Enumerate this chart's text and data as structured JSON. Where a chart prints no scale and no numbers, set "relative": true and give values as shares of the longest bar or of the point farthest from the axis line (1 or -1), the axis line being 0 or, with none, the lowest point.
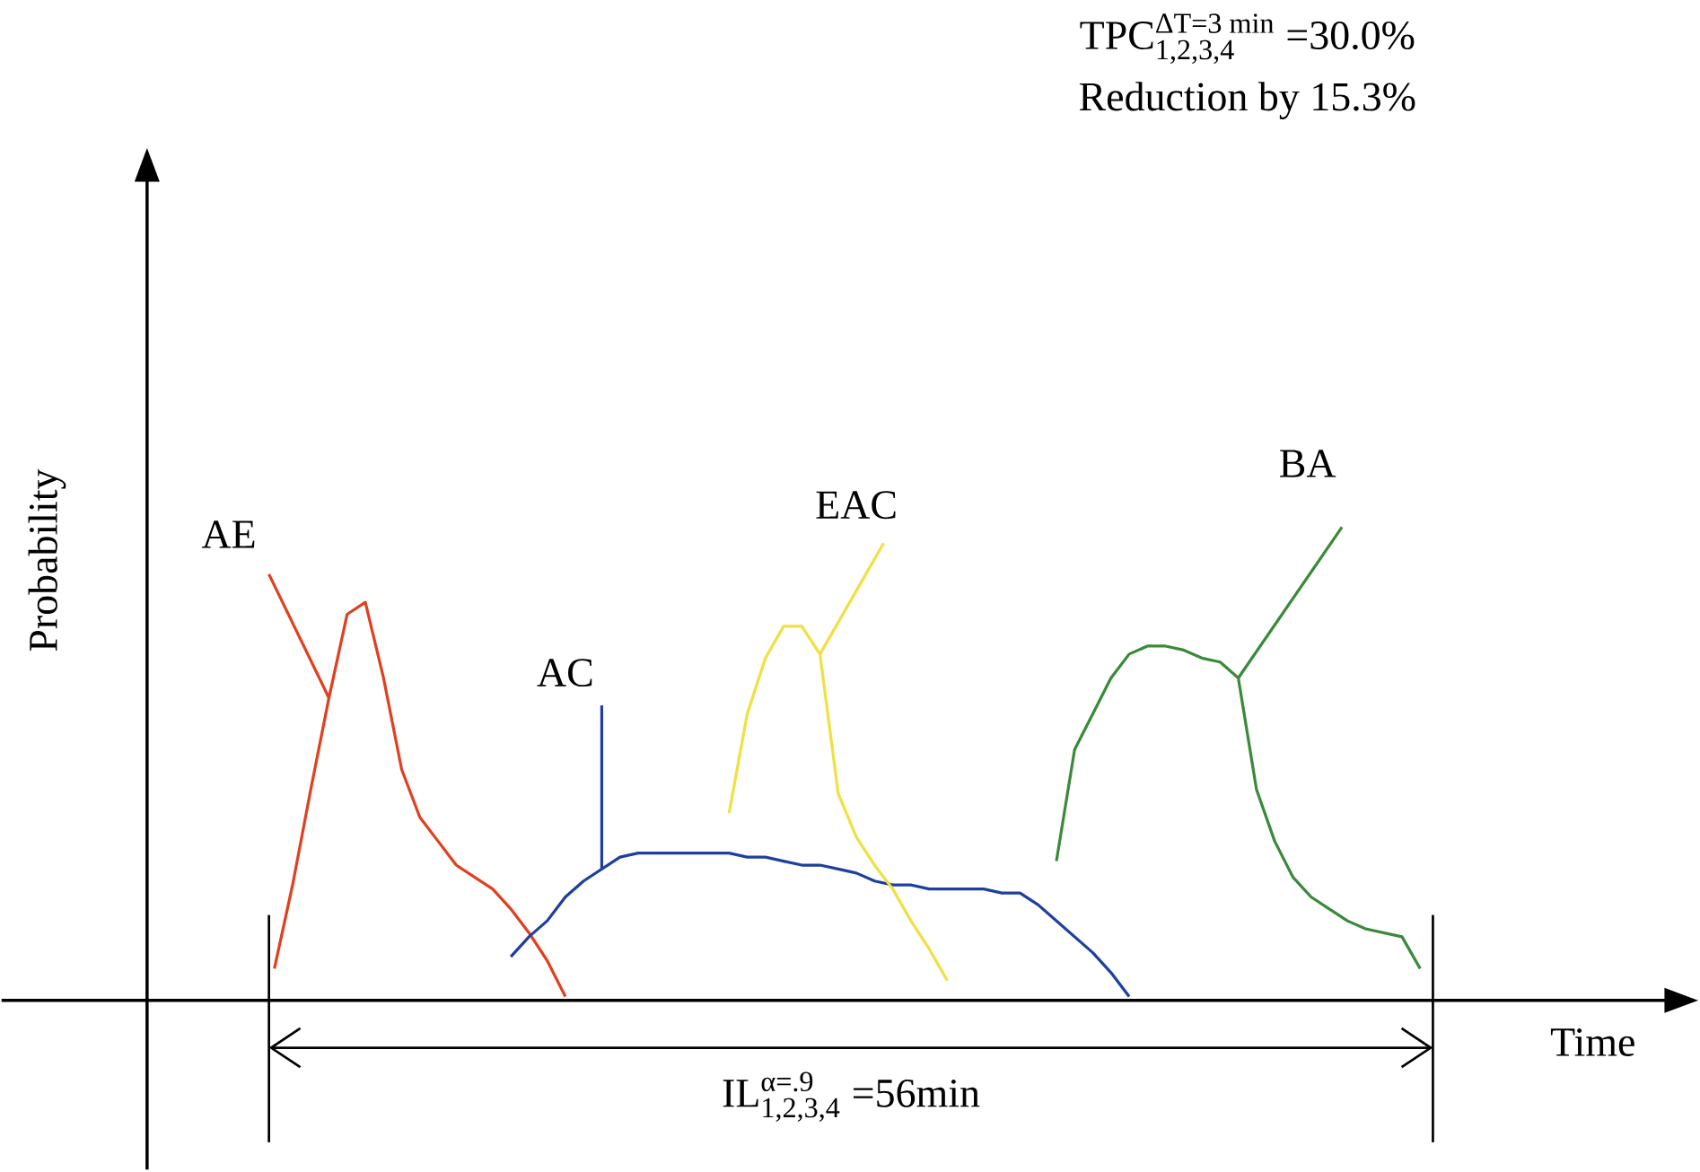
{
  "chart_data": {
    "type": "line",
    "relative": true,
    "title": "\\text{TPC}^{\\text{ΔT=3 min}}_{\\text{1,2,3,4}}\\text{ =30.0\\%}",
    "subtitle": "Reduction by 15.3%",
    "xlabel": "Time",
    "ylabel": "Probability",
    "marker": "none",
    "line_style": "solid",
    "annotations": [
      "\\text{IL}^{\\text{α=.9}}_{\\text{1,2,3,4}}\\text{ =56min}"
    ],
    "categories": [
      null,
      null,
      null,
      null,
      null,
      null,
      null,
      null,
      null,
      null,
      null,
      null,
      null,
      null,
      null,
      null,
      null,
      null,
      null,
      null,
      null,
      null,
      null,
      null,
      null,
      null,
      null,
      null,
      null,
      null,
      null,
      null,
      null,
      null,
      null,
      null,
      null,
      null,
      null,
      null,
      null,
      null,
      null,
      null,
      null,
      null,
      null,
      null,
      null,
      null,
      null,
      null,
      null,
      null,
      null,
      null,
      null,
      null,
      null,
      null,
      null,
      null,
      null,
      null,
      null
    ],
    "series": [
      {
        "name": "AE",
        "color": "#e0401f",
        "values": [
          null,
          0.08,
          0.29,
          0.53,
          0.76,
          0.97,
          1.0,
          0.81,
          0.58,
          0.46,
          0.4,
          0.34,
          0.31,
          0.28,
          0.23,
          0.17,
          0.1,
          0.01,
          null,
          null,
          null,
          null,
          null,
          null,
          null,
          null,
          null,
          null,
          null,
          null,
          null,
          null,
          null,
          null,
          null,
          null,
          null,
          null,
          null,
          null,
          null,
          null,
          null,
          null,
          null,
          null,
          null,
          null,
          null,
          null,
          null,
          null,
          null,
          null,
          null,
          null,
          null,
          null,
          null,
          null,
          null,
          null,
          null,
          null,
          null
        ]
      },
      {
        "name": "AC",
        "color": "#1f3fa0",
        "values": [
          null,
          null,
          null,
          null,
          null,
          null,
          null,
          null,
          null,
          null,
          null,
          null,
          null,
          null,
          0.11,
          0.16,
          0.2,
          0.26,
          0.3,
          0.33,
          0.36,
          0.37,
          0.37,
          0.37,
          0.37,
          0.37,
          0.37,
          0.36,
          0.36,
          0.35,
          0.34,
          0.34,
          0.33,
          0.32,
          0.3,
          0.29,
          0.29,
          0.28,
          0.28,
          0.28,
          0.28,
          0.27,
          0.27,
          0.24,
          0.2,
          0.16,
          0.12,
          0.07,
          0.01,
          null,
          null,
          null,
          null,
          null,
          null,
          null,
          null,
          null,
          null,
          null,
          null,
          null,
          null,
          null,
          null
        ]
      },
      {
        "name": "EAC",
        "color": "#f0e040",
        "values": [
          null,
          null,
          null,
          null,
          null,
          null,
          null,
          null,
          null,
          null,
          null,
          null,
          null,
          null,
          null,
          null,
          null,
          null,
          null,
          null,
          null,
          null,
          null,
          null,
          null,
          null,
          0.47,
          0.72,
          0.86,
          0.94,
          0.94,
          0.87,
          0.52,
          0.41,
          0.34,
          0.28,
          0.2,
          0.13,
          0.05,
          null,
          null,
          null,
          null,
          null,
          null,
          null,
          null,
          null,
          null,
          null,
          null,
          null,
          null,
          null,
          null,
          null,
          null,
          null,
          null,
          null,
          null,
          null,
          null,
          null,
          null
        ]
      },
      {
        "name": "BA",
        "color": "#3a8a3a",
        "values": [
          null,
          null,
          null,
          null,
          null,
          null,
          null,
          null,
          null,
          null,
          null,
          null,
          null,
          null,
          null,
          null,
          null,
          null,
          null,
          null,
          null,
          null,
          null,
          null,
          null,
          null,
          null,
          null,
          null,
          null,
          null,
          null,
          null,
          null,
          null,
          null,
          null,
          null,
          null,
          null,
          null,
          null,
          null,
          null,
          0.35,
          0.63,
          0.72,
          0.81,
          0.87,
          0.89,
          0.89,
          0.88,
          0.86,
          0.85,
          0.81,
          0.53,
          0.4,
          0.31,
          0.26,
          0.23,
          0.2,
          0.18,
          0.17,
          0.16,
          0.08
        ]
      }
    ]
  }
}
